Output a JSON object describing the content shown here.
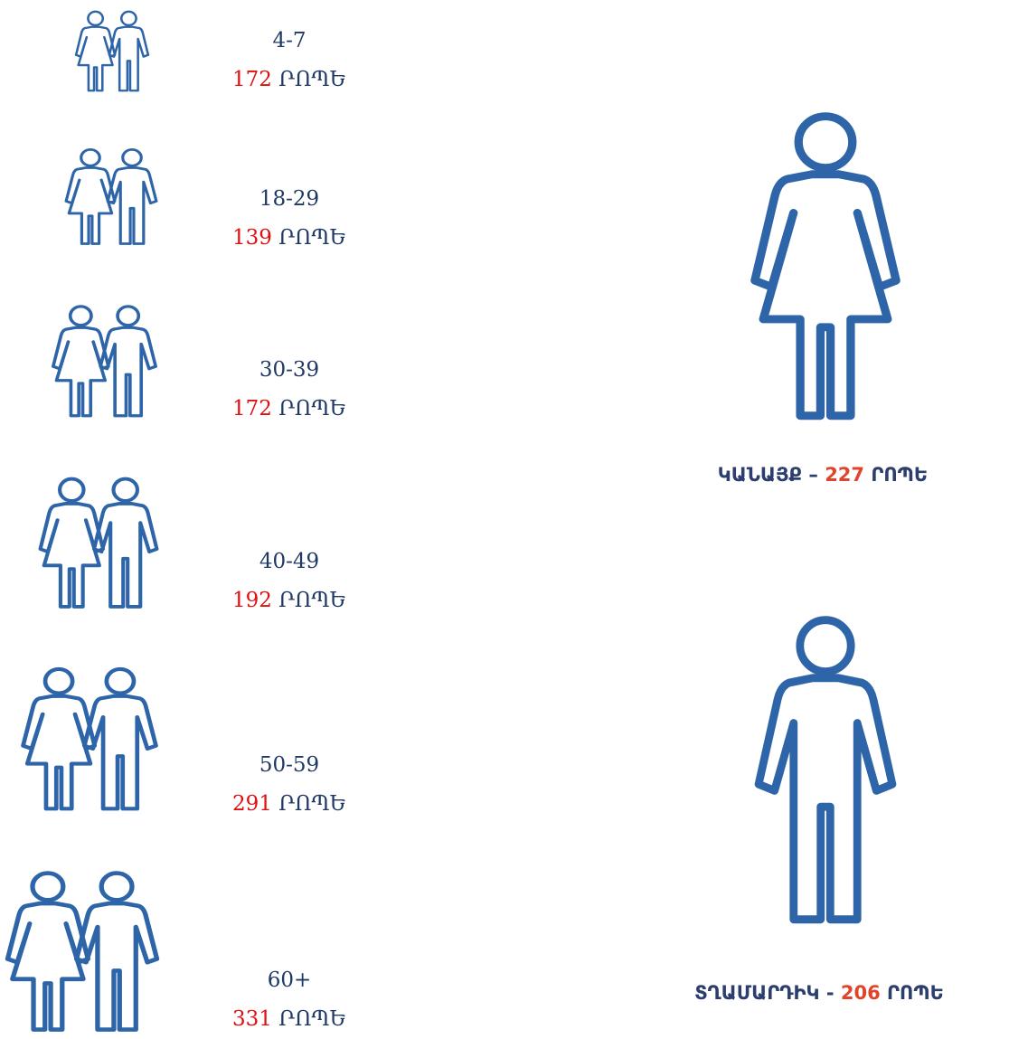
{
  "age_groups": [
    {
      "age": "4-7",
      "minutes": 172,
      "unit": "ՐՈՊԵ"
    },
    {
      "age": "18-29",
      "minutes": 139,
      "unit": "ՐՈՊԵ"
    },
    {
      "age": "30-39",
      "minutes": 172,
      "unit": "ՐՈՊԵ"
    },
    {
      "age": "40-49",
      "minutes": 192,
      "unit": "ՐՈՊԵ"
    },
    {
      "age": "50-59",
      "minutes": 291,
      "unit": "ՐՈՊԵ"
    },
    {
      "age": "60+",
      "minutes": 331,
      "unit": "ՐՈՊԵ"
    }
  ],
  "women": {
    "label": "ԿԱՆԱՅՔ",
    "separator": "–",
    "minutes": 227,
    "unit": "ՐՈՊԵ"
  },
  "men": {
    "label": "ՏՂԱՄԱՐԴԻԿ",
    "separator": "-",
    "minutes": 206,
    "unit": "ՐՈՊԵ"
  }
}
